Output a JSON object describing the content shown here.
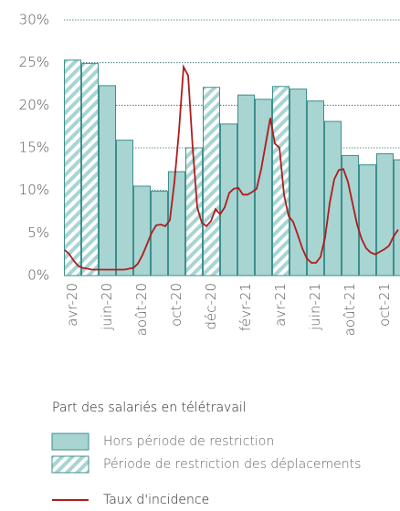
{
  "chart_data": {
    "type": "bar",
    "legend_title": "Part des salariés en télétravail",
    "categories": [
      "avr-20",
      null,
      "juin-20",
      null,
      "août-20",
      null,
      "oct-20",
      null,
      "déc-20",
      null,
      "févr-21",
      null,
      "avr-21",
      null,
      "juin-21",
      null,
      "août-21",
      null,
      "oct-21",
      null
    ],
    "series": [
      {
        "name": "Hors période de restriction",
        "color": "#a8d4d2",
        "pattern": "solid",
        "values": [
          null,
          null,
          22.3,
          15.9,
          10.5,
          9.9,
          12.2,
          null,
          null,
          17.8,
          21.2,
          20.7,
          null,
          21.9,
          20.5,
          18.1,
          14.1,
          13.0,
          14.3,
          13.6
        ]
      },
      {
        "name": "Période de restriction des déplacements",
        "color": "#a8d4d2",
        "pattern": "hatched",
        "values": [
          25.3,
          24.9,
          null,
          null,
          null,
          null,
          null,
          15.0,
          22.1,
          null,
          null,
          null,
          22.2,
          null,
          null,
          null,
          null,
          null,
          null,
          null
        ]
      }
    ],
    "line": {
      "name": "Taux d'incidence",
      "color": "#b01c1c",
      "values": [
        3.0,
        2.5,
        1.7,
        1.1,
        0.9,
        0.8,
        0.7,
        0.7,
        0.7,
        0.7,
        0.7,
        0.7,
        0.7,
        0.7,
        0.8,
        0.9,
        1.4,
        2.4,
        3.7,
        5.0,
        5.9,
        6.0,
        5.8,
        6.5,
        11,
        17,
        24.5,
        23.5,
        15,
        8,
        6.2,
        5.8,
        6.4,
        7.8,
        7.2,
        8.0,
        9.7,
        10.2,
        10.3,
        9.5,
        9.5,
        9.8,
        10.2,
        12.5,
        15.5,
        18.5,
        15.5,
        15,
        9.5,
        7.0,
        6.3,
        4.8,
        3.2,
        2.0,
        1.5,
        1.5,
        2.2,
        4.5,
        8.5,
        11.3,
        12.4,
        12.5,
        11,
        8.5,
        6,
        4.3,
        3.2,
        2.7,
        2.5,
        2.8,
        3.1,
        3.5,
        4.6,
        5.4
      ]
    },
    "ylim": [
      0,
      30
    ],
    "yticks": [
      {
        "value": 0,
        "label": "0%"
      },
      {
        "value": 5,
        "label": "5%"
      },
      {
        "value": 10,
        "label": "10%"
      },
      {
        "value": 15,
        "label": "15%"
      },
      {
        "value": 20,
        "label": "20%"
      },
      {
        "value": 25,
        "label": "25%"
      },
      {
        "value": 30,
        "label": "30%"
      }
    ],
    "grid": true
  }
}
